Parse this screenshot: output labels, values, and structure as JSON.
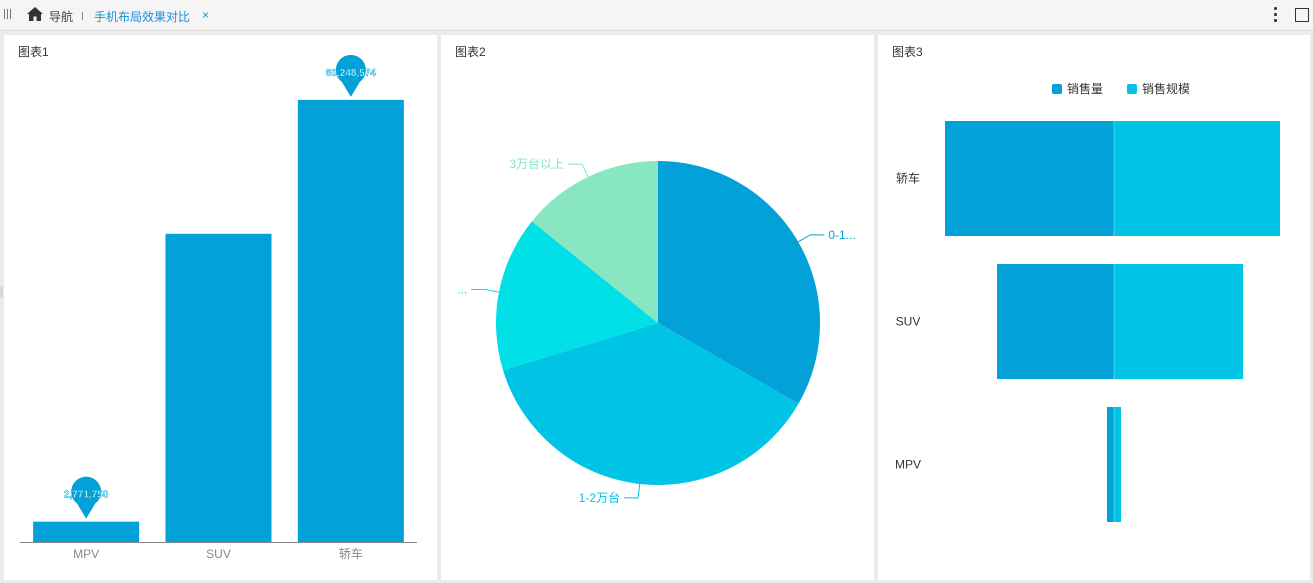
{
  "nav": {
    "home_icon": "home-icon",
    "label": "导航",
    "active_tab": "手机布局效果对比",
    "close_symbol": "×"
  },
  "panels": [
    {
      "title": "图表1"
    },
    {
      "title": "图表2"
    },
    {
      "title": "图表3"
    }
  ],
  "colors": {
    "primary": "#02a2d8",
    "secondary": "#00c4e6",
    "cyan": "#00e0e6",
    "mint": "#88e6c0",
    "accent_text": "#1890d6"
  },
  "chart_data": [
    {
      "type": "bar",
      "categories": [
        "MPV",
        "SUV",
        "轿车"
      ],
      "values": [
        2771750,
        42000000,
        60248574
      ],
      "data_labels": [
        "2,771,750",
        "",
        "60,248,574"
      ],
      "ylim": [
        0,
        65000000
      ],
      "grid": false,
      "color": "#02a2d8"
    },
    {
      "type": "pie",
      "slices": [
        {
          "label": "0-1...",
          "value": 33.3,
          "color": "#02a2d8"
        },
        {
          "label": "1-2万台",
          "value": 37.0,
          "color": "#00c4e6"
        },
        {
          "label": "...",
          "value": 15.5,
          "color": "#00e0e6"
        },
        {
          "label": "3万台以上",
          "value": 14.2,
          "color": "#88e6c0"
        }
      ]
    },
    {
      "type": "bar",
      "orientation": "horizontal",
      "stacked": "diverging",
      "categories": [
        "轿车",
        "SUV",
        "MPV"
      ],
      "legend_position": "top",
      "series": [
        {
          "name": "销售量",
          "values": [
            169,
            117,
            7
          ],
          "color": "#02a2d8"
        },
        {
          "name": "销售规模",
          "values": [
            166,
            129,
            7
          ],
          "color": "#00c4e6"
        }
      ]
    }
  ]
}
